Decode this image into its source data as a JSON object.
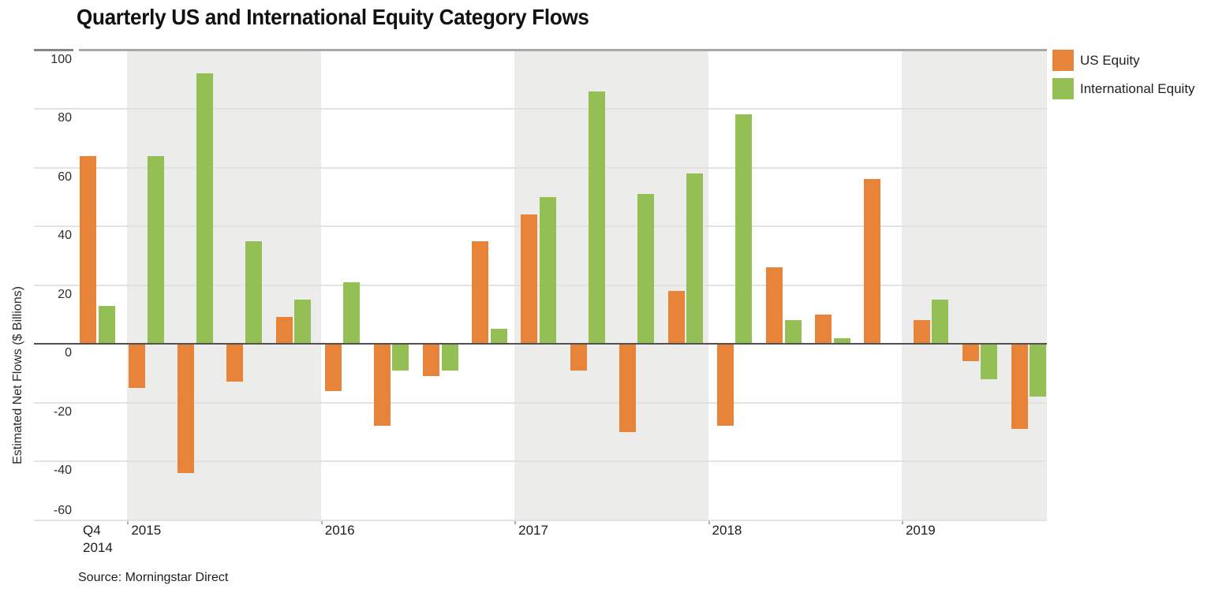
{
  "chart_data": {
    "type": "bar",
    "title": "Quarterly US and International Equity Category Flows",
    "ylabel": "Estimated Net Flows ($ Billions)",
    "source": "Source: Morningstar Direct",
    "ylim": [
      -60,
      100
    ],
    "yticks": [
      100,
      80,
      60,
      40,
      20,
      0,
      -20,
      -40,
      -60
    ],
    "grid": true,
    "legend_position": "top-right",
    "band_color": "#ececea",
    "categories": [
      "Q4 2014",
      "Q1 2015",
      "Q2 2015",
      "Q3 2015",
      "Q4 2015",
      "Q1 2016",
      "Q2 2016",
      "Q3 2016",
      "Q4 2016",
      "Q1 2017",
      "Q2 2017",
      "Q3 2017",
      "Q4 2017",
      "Q1 2018",
      "Q2 2018",
      "Q3 2018",
      "Q4 2018",
      "Q1 2019",
      "Q2 2019",
      "Q3 2019"
    ],
    "series": [
      {
        "name": "US Equity",
        "color": "#E8833A",
        "values": [
          64,
          -15,
          -44,
          -13,
          9,
          -16,
          -28,
          -11,
          35,
          44,
          -9,
          -30,
          18,
          -28,
          26,
          10,
          56,
          8,
          -6,
          -29
        ]
      },
      {
        "name": "International Equity",
        "color": "#93BF55",
        "values": [
          13,
          64,
          92,
          35,
          15,
          21,
          -9,
          -9,
          5,
          50,
          86,
          51,
          58,
          78,
          8,
          2,
          0,
          15,
          -12,
          -18
        ]
      }
    ],
    "x_groups": [
      {
        "label_lines": [
          "Q4",
          "2014"
        ],
        "quarters": 1,
        "shaded": false
      },
      {
        "label_lines": [
          "2015"
        ],
        "quarters": 4,
        "shaded": true
      },
      {
        "label_lines": [
          "2016"
        ],
        "quarters": 4,
        "shaded": false
      },
      {
        "label_lines": [
          "2017"
        ],
        "quarters": 4,
        "shaded": true
      },
      {
        "label_lines": [
          "2018"
        ],
        "quarters": 4,
        "shaded": false
      },
      {
        "label_lines": [
          "2019"
        ],
        "quarters": 3,
        "shaded": true
      }
    ]
  }
}
